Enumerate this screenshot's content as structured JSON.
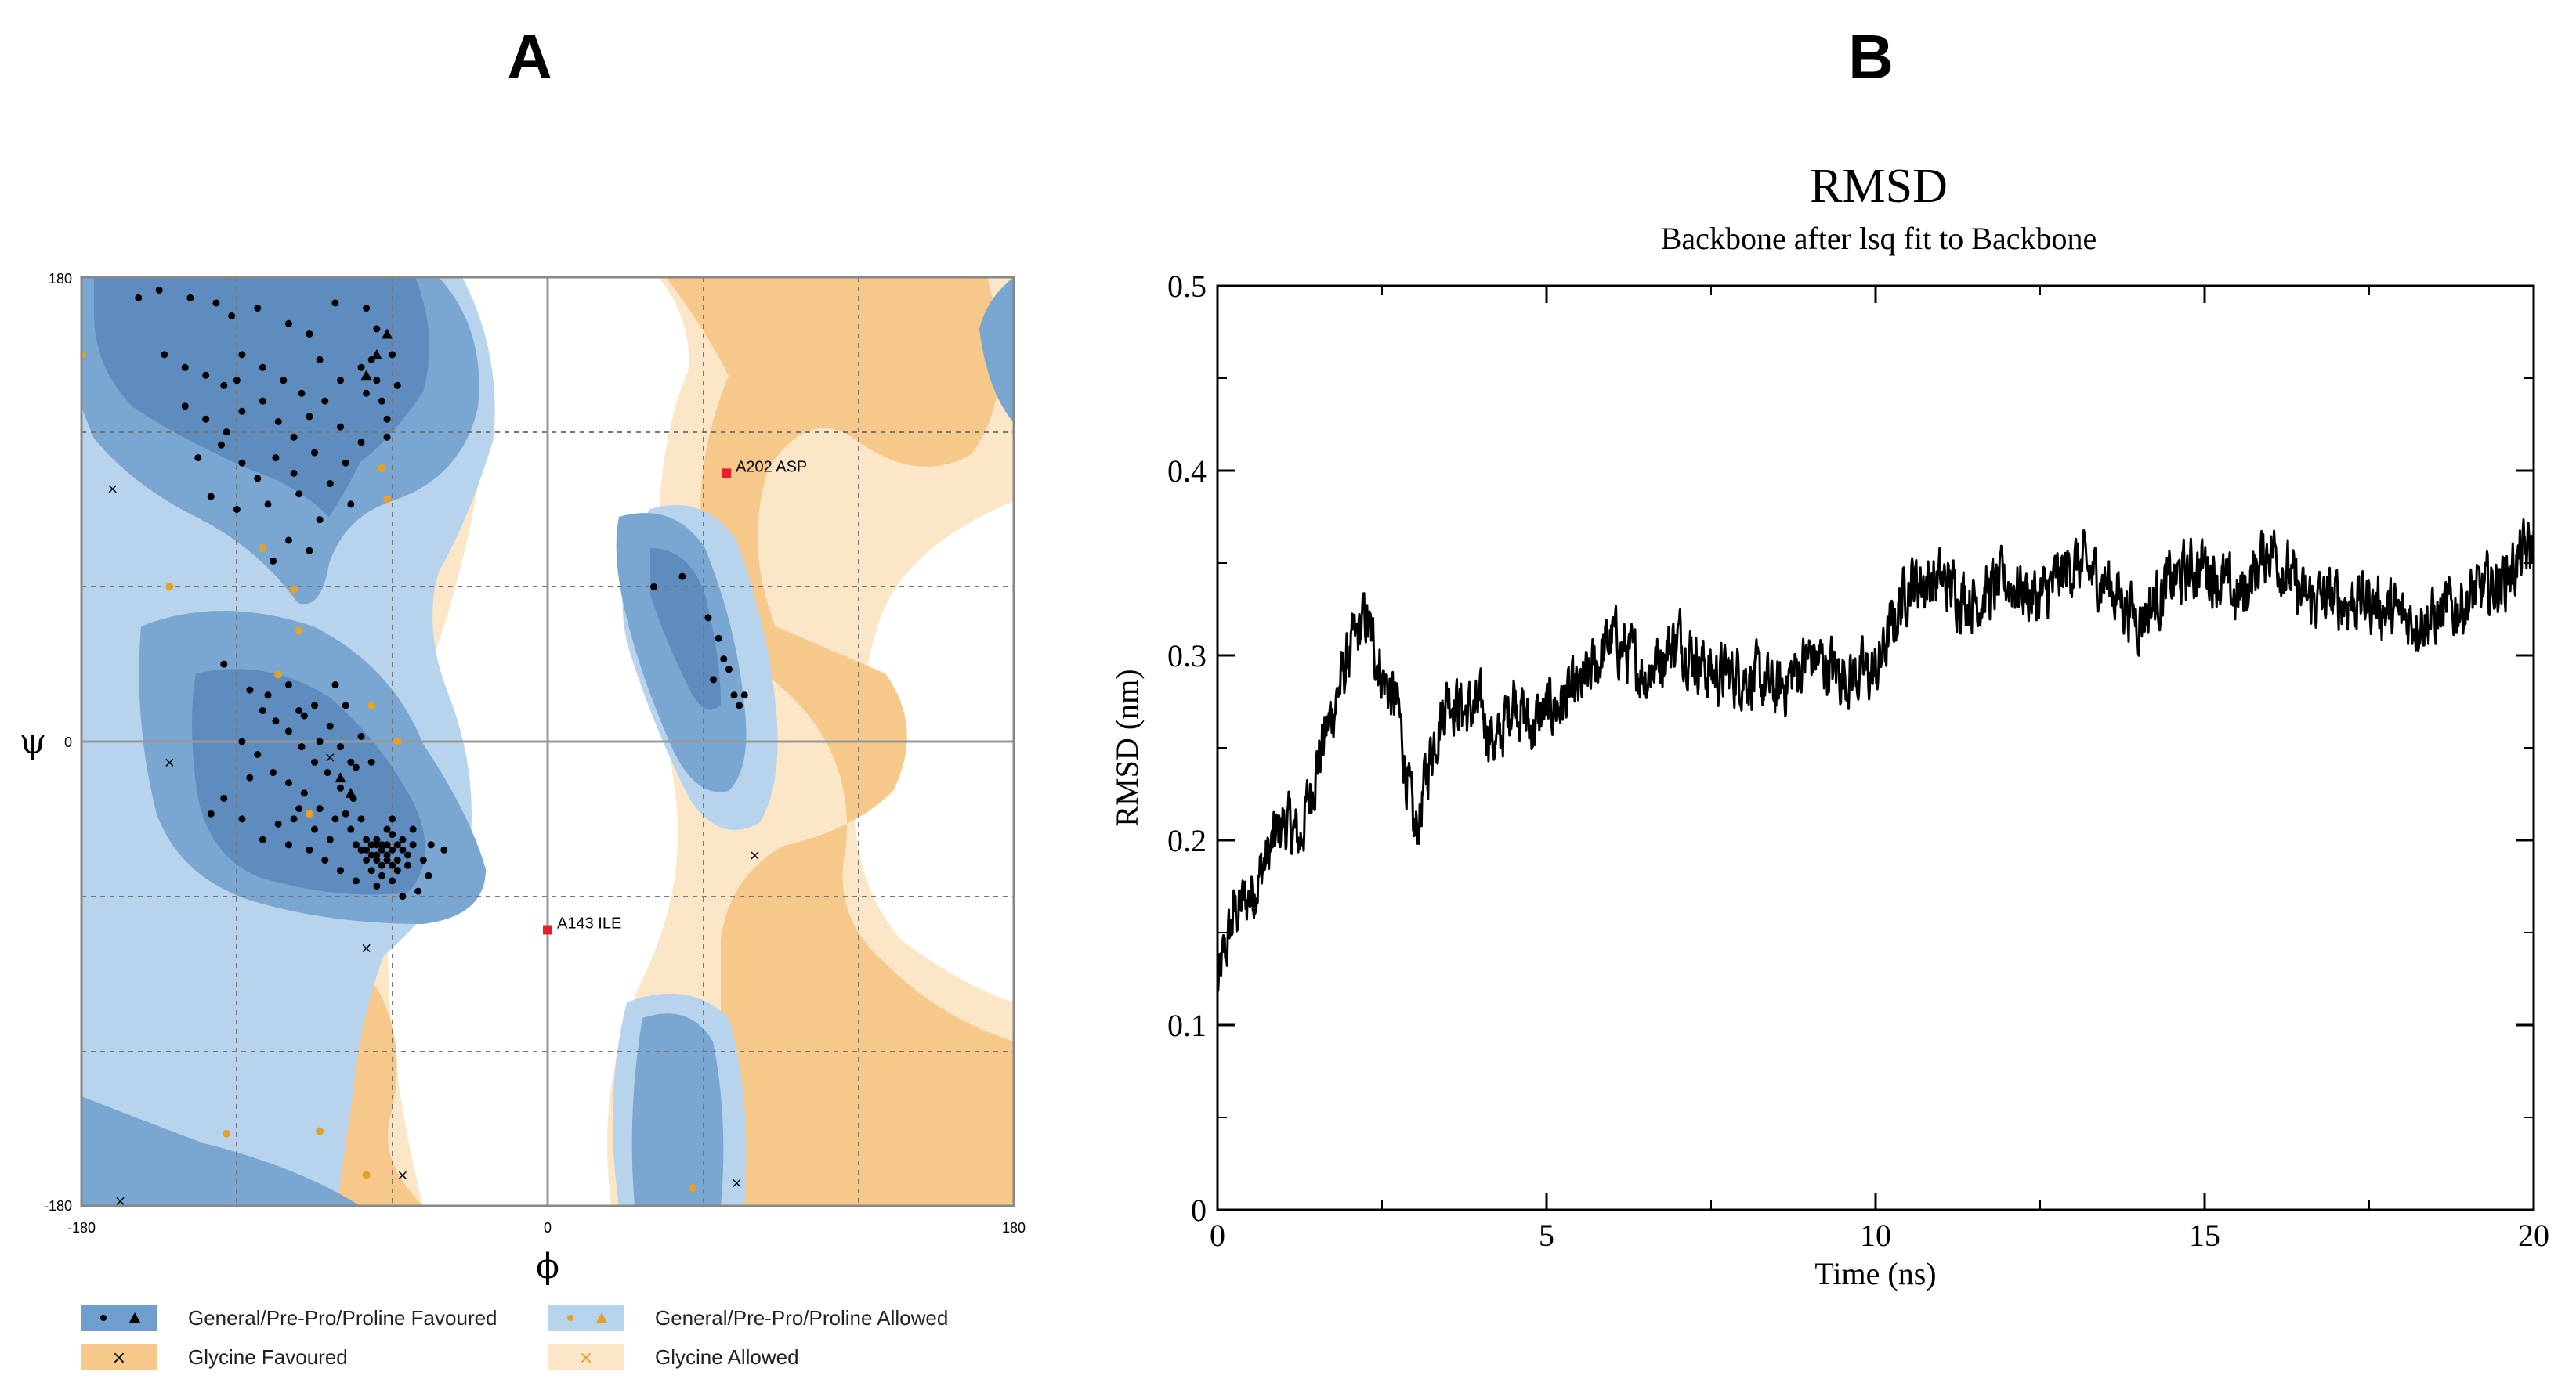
{
  "panels": {
    "a_label": "A",
    "b_label": "B"
  },
  "chart_data": [
    {
      "type": "scatter",
      "name": "ramachandran",
      "xlabel": "ϕ",
      "ylabel": "ψ",
      "xlim": [
        -180,
        180
      ],
      "ylim": [
        -180,
        180
      ],
      "x_ticks": [
        "-180",
        "0",
        "180"
      ],
      "y_ticks": [
        "180",
        "0",
        "-180"
      ],
      "grid_lines": [
        -120,
        -60,
        60,
        120
      ],
      "colors": {
        "general_favoured": "#6f9fcf",
        "general_core": "#5e8cbf",
        "general_allowed": "#b8d4ec",
        "glycine_favoured": "#f6c98a",
        "glycine_allowed": "#fce6c8",
        "outlier": "#e8202a",
        "glycine_point": "#e6a028"
      },
      "outliers": [
        {
          "label": "A202  ASP",
          "phi": 69,
          "psi": 104
        },
        {
          "label": "A143  ILE",
          "phi": 0,
          "psi": -73
        }
      ],
      "general_points": [
        [
          -158,
          172
        ],
        [
          -150,
          175
        ],
        [
          -138,
          172
        ],
        [
          -128,
          170
        ],
        [
          -122,
          165
        ],
        [
          -112,
          168
        ],
        [
          -100,
          162
        ],
        [
          -92,
          158
        ],
        [
          -82,
          170
        ],
        [
          -70,
          168
        ],
        [
          -148,
          150
        ],
        [
          -140,
          145
        ],
        [
          -132,
          142
        ],
        [
          -125,
          138
        ],
        [
          -118,
          150
        ],
        [
          -110,
          145
        ],
        [
          -102,
          140
        ],
        [
          -95,
          135
        ],
        [
          -88,
          148
        ],
        [
          -80,
          140
        ],
        [
          -140,
          130
        ],
        [
          -132,
          125
        ],
        [
          -124,
          120
        ],
        [
          -118,
          128
        ],
        [
          -110,
          132
        ],
        [
          -104,
          124
        ],
        [
          -98,
          118
        ],
        [
          -92,
          126
        ],
        [
          -86,
          132
        ],
        [
          -80,
          122
        ],
        [
          -135,
          110
        ],
        [
          -126,
          115
        ],
        [
          -118,
          108
        ],
        [
          -112,
          102
        ],
        [
          -105,
          110
        ],
        [
          -98,
          104
        ],
        [
          -90,
          112
        ],
        [
          -84,
          100
        ],
        [
          -78,
          108
        ],
        [
          -72,
          116
        ],
        [
          -68,
          148
        ],
        [
          -66,
          140
        ],
        [
          -64,
          132
        ],
        [
          -62,
          125
        ],
        [
          -70,
          135
        ],
        [
          -72,
          145
        ],
        [
          -60,
          150
        ],
        [
          -58,
          138
        ],
        [
          -66,
          160
        ],
        [
          -62,
          118
        ],
        [
          -130,
          95
        ],
        [
          -120,
          90
        ],
        [
          -108,
          92
        ],
        [
          -96,
          96
        ],
        [
          -88,
          86
        ],
        [
          -76,
          92
        ],
        [
          -100,
          78
        ],
        [
          -92,
          74
        ],
        [
          -106,
          70
        ],
        [
          -120,
          140
        ],
        [
          -125,
          30
        ],
        [
          -115,
          20
        ],
        [
          -110,
          12
        ],
        [
          -105,
          8
        ],
        [
          -100,
          4
        ],
        [
          -95,
          -2
        ],
        [
          -90,
          -8
        ],
        [
          -85,
          -12
        ],
        [
          -80,
          -18
        ],
        [
          -75,
          -22
        ],
        [
          -118,
          0
        ],
        [
          -112,
          -5
        ],
        [
          -106,
          -12
        ],
        [
          -100,
          -16
        ],
        [
          -94,
          -20
        ],
        [
          -88,
          -26
        ],
        [
          -82,
          -30
        ],
        [
          -76,
          -34
        ],
        [
          -70,
          -38
        ],
        [
          -64,
          -40
        ],
        [
          -72,
          -42
        ],
        [
          -68,
          -44
        ],
        [
          -66,
          -46
        ],
        [
          -64,
          -42
        ],
        [
          -62,
          -44
        ],
        [
          -60,
          -48
        ],
        [
          -58,
          -46
        ],
        [
          -62,
          -40
        ],
        [
          -66,
          -38
        ],
        [
          -70,
          -46
        ],
        [
          -60,
          -36
        ],
        [
          -56,
          -42
        ],
        [
          -54,
          -44
        ],
        [
          -58,
          -50
        ],
        [
          -64,
          -52
        ],
        [
          -68,
          -50
        ],
        [
          -62,
          -34
        ],
        [
          -56,
          -38
        ],
        [
          -52,
          -40
        ],
        [
          -66,
          -40
        ],
        [
          -74,
          -40
        ],
        [
          -70,
          -42
        ],
        [
          -60,
          -42
        ],
        [
          -62,
          -46
        ],
        [
          -64,
          -48
        ],
        [
          -58,
          -40
        ],
        [
          -66,
          -44
        ],
        [
          -68,
          -40
        ],
        [
          -54,
          -48
        ],
        [
          -60,
          -54
        ],
        [
          -125,
          -22
        ],
        [
          -118,
          -30
        ],
        [
          -110,
          -38
        ],
        [
          -100,
          -40
        ],
        [
          -92,
          -42
        ],
        [
          -84,
          -38
        ],
        [
          -78,
          -28
        ],
        [
          -50,
          -58
        ],
        [
          -45,
          -40
        ],
        [
          -40,
          -42
        ],
        [
          -108,
          18
        ],
        [
          -100,
          22
        ],
        [
          -96,
          12
        ],
        [
          -90,
          14
        ],
        [
          -84,
          6
        ],
        [
          -80,
          -2
        ],
        [
          -76,
          -8
        ],
        [
          -130,
          -28
        ],
        [
          -115,
          -14
        ],
        [
          -98,
          -30
        ],
        [
          -82,
          22
        ],
        [
          -78,
          14
        ],
        [
          -72,
          2
        ],
        [
          -68,
          -8
        ],
        [
          -86,
          -46
        ],
        [
          -80,
          -50
        ],
        [
          -74,
          -54
        ],
        [
          -66,
          -56
        ],
        [
          -56,
          -60
        ],
        [
          -60,
          -30
        ],
        [
          -104,
          -32
        ],
        [
          -96,
          -26
        ],
        [
          -90,
          -34
        ],
        [
          -52,
          -34
        ],
        [
          -48,
          -46
        ],
        [
          -46,
          -52
        ],
        [
          -72,
          -30
        ],
        [
          -74,
          -10
        ],
        [
          -88,
          0
        ],
        [
          -94,
          10
        ],
        [
          41,
          60
        ],
        [
          52,
          64
        ],
        [
          62,
          48
        ],
        [
          66,
          40
        ],
        [
          68,
          32
        ],
        [
          70,
          28
        ],
        [
          72,
          18
        ],
        [
          74,
          14
        ],
        [
          76,
          18
        ],
        [
          64,
          24
        ]
      ],
      "general_triangles": [
        [
          -62,
          158
        ],
        [
          -66,
          150
        ],
        [
          -70,
          142
        ],
        [
          -80,
          -14
        ],
        [
          -76,
          -20
        ]
      ],
      "glycine_points": [
        [
          -168,
          98
        ],
        [
          -146,
          -8
        ],
        [
          -84,
          -6
        ],
        [
          -70,
          -80
        ],
        [
          80,
          -44
        ],
        [
          -56,
          -168
        ],
        [
          -165,
          -178
        ],
        [
          73,
          -171
        ]
      ],
      "glycine_allowed_points": [
        [
          -180,
          150
        ],
        [
          -146,
          60
        ],
        [
          -110,
          75
        ],
        [
          -98,
          59
        ],
        [
          -96,
          43
        ],
        [
          -104,
          26
        ],
        [
          -92,
          -28
        ],
        [
          -68,
          14
        ],
        [
          -58,
          0
        ],
        [
          -64,
          106
        ],
        [
          -62,
          94
        ],
        [
          -124,
          -152
        ],
        [
          -88,
          -151
        ],
        [
          -70,
          -168
        ],
        [
          56,
          -173
        ]
      ],
      "legend": [
        {
          "label": "General/Pre-Pro/Proline Favoured",
          "color": "#6f9fcf",
          "markers": "• ▲"
        },
        {
          "label": "General/Pre-Pro/Proline Allowed",
          "color": "#b8d4ec",
          "markers": "• ▲"
        },
        {
          "label": "Glycine Favoured",
          "color": "#f6c98a",
          "markers": "×"
        },
        {
          "label": "Glycine Allowed",
          "color": "#fce6c8",
          "markers": "×"
        }
      ]
    },
    {
      "type": "line",
      "name": "rmsd",
      "title": "RMSD",
      "subtitle": "Backbone after lsq fit to Backbone",
      "xlabel": "Time (ns)",
      "ylabel": "RMSD (nm)",
      "xlim": [
        0,
        20
      ],
      "ylim": [
        0,
        0.5
      ],
      "x_ticks": [
        "0",
        "5",
        "10",
        "15",
        "20"
      ],
      "y_ticks": [
        "0",
        "0.1",
        "0.2",
        "0.3",
        "0.4",
        "0.5"
      ],
      "color": "#000000",
      "x": [
        0,
        0.25,
        0.5,
        0.75,
        1.0,
        1.25,
        1.5,
        1.75,
        2.0,
        2.25,
        2.5,
        2.75,
        3.0,
        3.25,
        3.5,
        3.75,
        4.0,
        4.25,
        4.5,
        4.75,
        5.0,
        5.5,
        6.0,
        6.5,
        7.0,
        7.5,
        8.0,
        8.5,
        9.0,
        9.5,
        10.0,
        10.5,
        11.0,
        11.5,
        12.0,
        12.5,
        13.0,
        13.5,
        14.0,
        14.5,
        15.0,
        15.5,
        16.0,
        16.5,
        17.0,
        17.5,
        18.0,
        18.5,
        19.0,
        19.5,
        20.0
      ],
      "values": [
        0.12,
        0.16,
        0.17,
        0.19,
        0.21,
        0.2,
        0.24,
        0.27,
        0.3,
        0.32,
        0.29,
        0.27,
        0.2,
        0.25,
        0.28,
        0.27,
        0.27,
        0.25,
        0.28,
        0.26,
        0.27,
        0.28,
        0.31,
        0.29,
        0.31,
        0.29,
        0.29,
        0.28,
        0.3,
        0.29,
        0.29,
        0.34,
        0.34,
        0.33,
        0.34,
        0.33,
        0.35,
        0.34,
        0.32,
        0.34,
        0.35,
        0.33,
        0.36,
        0.33,
        0.33,
        0.33,
        0.32,
        0.32,
        0.33,
        0.34,
        0.36
      ]
    }
  ]
}
